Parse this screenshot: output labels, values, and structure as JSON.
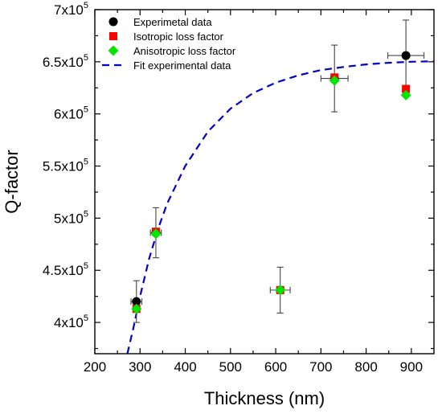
{
  "chart_data": {
    "type": "scatter",
    "xlabel": "Thickness (nm)",
    "ylabel": "Q-factor",
    "xlim": [
      200,
      950
    ],
    "ylim": [
      370000,
      700000
    ],
    "x_ticks": [
      200,
      300,
      400,
      500,
      600,
      700,
      800,
      900
    ],
    "y_ticks": [
      {
        "value": 400000,
        "mantissa": "4",
        "exp": "5"
      },
      {
        "value": 450000,
        "mantissa": "4.5",
        "exp": "5"
      },
      {
        "value": 500000,
        "mantissa": "5",
        "exp": "5"
      },
      {
        "value": 550000,
        "mantissa": "5.5",
        "exp": "5"
      },
      {
        "value": 600000,
        "mantissa": "6",
        "exp": "5"
      },
      {
        "value": 650000,
        "mantissa": "6.5",
        "exp": "5"
      },
      {
        "value": 700000,
        "mantissa": "7",
        "exp": "5"
      }
    ],
    "y_tick_format": "x10",
    "legend_position": "top-left",
    "series": [
      {
        "name": "Experimetal data",
        "marker": "circle",
        "color": "#000000",
        "points": [
          {
            "x": 292,
            "y": 420000,
            "xerr": 12,
            "yerr": 20000
          },
          {
            "x": 335,
            "y": 486000,
            "xerr": 12,
            "yerr": 24000
          },
          {
            "x": 610,
            "y": 431000,
            "xerr": 22,
            "yerr": 22000
          },
          {
            "x": 730,
            "y": 634000,
            "xerr": 30,
            "yerr": 32000
          },
          {
            "x": 888,
            "y": 656000,
            "xerr": 40,
            "yerr": 34000
          }
        ]
      },
      {
        "name": "Isotropic loss factor",
        "marker": "square",
        "color": "#ff0000",
        "points": [
          {
            "x": 292,
            "y": 413000
          },
          {
            "x": 335,
            "y": 487000
          },
          {
            "x": 610,
            "y": 431000
          },
          {
            "x": 730,
            "y": 635000
          },
          {
            "x": 888,
            "y": 624000
          }
        ]
      },
      {
        "name": "Anisotropic loss factor",
        "marker": "diamond",
        "color": "#00e600",
        "points": [
          {
            "x": 292,
            "y": 413000
          },
          {
            "x": 335,
            "y": 485000
          },
          {
            "x": 610,
            "y": 431000
          },
          {
            "x": 730,
            "y": 632000
          },
          {
            "x": 888,
            "y": 618000
          }
        ]
      },
      {
        "name": "Fit experimental data",
        "style": "dashed",
        "color": "#0000cc",
        "points": [
          {
            "x": 272,
            "y": 370000
          },
          {
            "x": 285,
            "y": 394000
          },
          {
            "x": 300,
            "y": 425000
          },
          {
            "x": 320,
            "y": 461000
          },
          {
            "x": 340,
            "y": 490000
          },
          {
            "x": 360,
            "y": 514000
          },
          {
            "x": 400,
            "y": 550000
          },
          {
            "x": 450,
            "y": 583000
          },
          {
            "x": 500,
            "y": 605000
          },
          {
            "x": 550,
            "y": 620000
          },
          {
            "x": 600,
            "y": 630000
          },
          {
            "x": 650,
            "y": 637000
          },
          {
            "x": 700,
            "y": 642000
          },
          {
            "x": 750,
            "y": 645000
          },
          {
            "x": 800,
            "y": 647500
          },
          {
            "x": 850,
            "y": 649000
          },
          {
            "x": 900,
            "y": 650000
          },
          {
            "x": 950,
            "y": 650500
          }
        ]
      }
    ]
  }
}
